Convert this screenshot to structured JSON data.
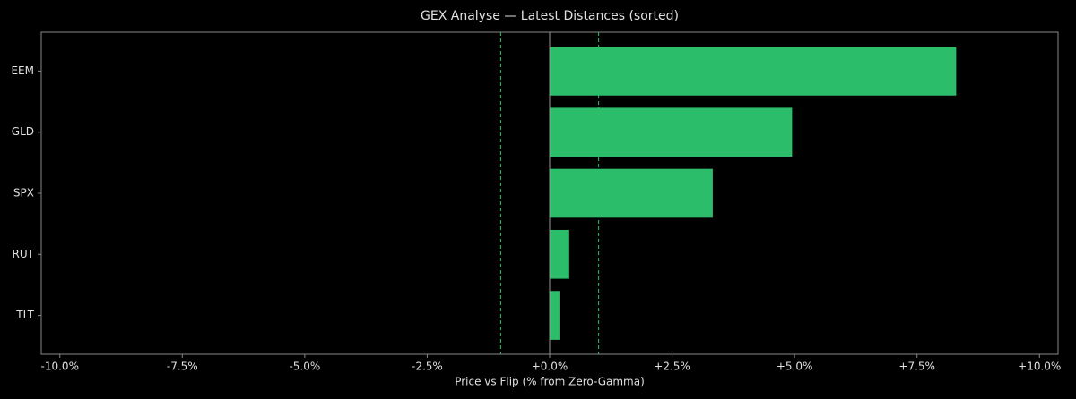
{
  "chart_data": {
    "type": "barh",
    "title": "GEX Analyse — Latest Distances (sorted)",
    "x_label": "Price vs Flip (% from Zero-Gamma)",
    "categories": [
      "EEM",
      "GLD",
      "SPX",
      "RUT",
      "TLT"
    ],
    "values": [
      8.3,
      4.95,
      3.33,
      0.4,
      0.2
    ],
    "color": "#2bbd6a",
    "xlim": [
      -10.38,
      10.38
    ],
    "xticks": [
      {
        "value": -10,
        "label": "-10.0%"
      },
      {
        "value": -7.5,
        "label": "-7.5%"
      },
      {
        "value": -5,
        "label": "-5.0%"
      },
      {
        "value": -2.5,
        "label": "-2.5%"
      },
      {
        "value": 0,
        "label": "+0.0%"
      },
      {
        "value": 2.5,
        "label": "+2.5%"
      },
      {
        "value": 5,
        "label": "+5.0%"
      },
      {
        "value": 7.5,
        "label": "+7.5%"
      },
      {
        "value": 10,
        "label": "+10.0%"
      }
    ],
    "reference_lines": [
      -1,
      1
    ],
    "reference_color": "#22c76a"
  }
}
